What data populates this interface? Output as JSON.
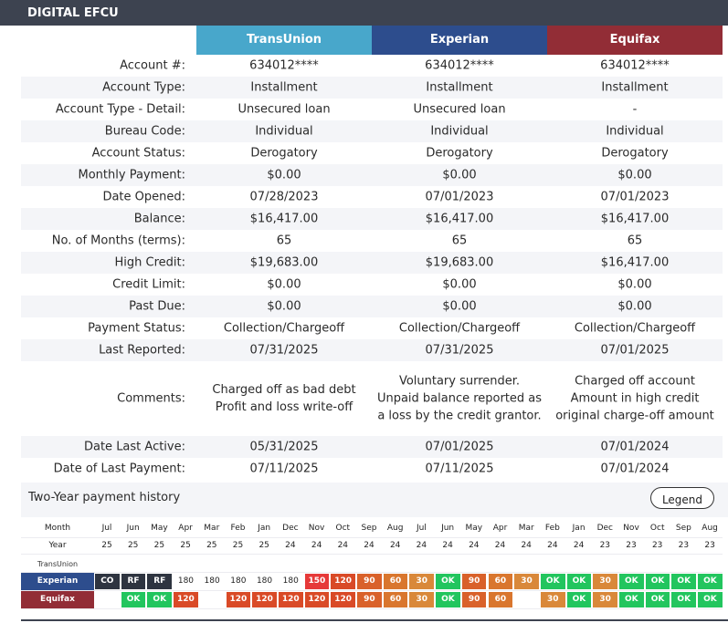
{
  "account": {
    "name": "DIGITAL EFCU",
    "bureaus": [
      "TransUnion",
      "Experian",
      "Equifax"
    ],
    "colors": {
      "transunion": "#48a7cb",
      "experian": "#2d4d8d",
      "equifax": "#922d36"
    },
    "rows": [
      {
        "label": "Account #:",
        "values": [
          "634012****",
          "634012****",
          "634012****"
        ]
      },
      {
        "label": "Account Type:",
        "values": [
          "Installment",
          "Installment",
          "Installment"
        ]
      },
      {
        "label": "Account Type - Detail:",
        "values": [
          "Unsecured loan",
          "Unsecured loan",
          "-"
        ]
      },
      {
        "label": "Bureau Code:",
        "values": [
          "Individual",
          "Individual",
          "Individual"
        ]
      },
      {
        "label": "Account Status:",
        "values": [
          "Derogatory",
          "Derogatory",
          "Derogatory"
        ]
      },
      {
        "label": "Monthly Payment:",
        "values": [
          "$0.00",
          "$0.00",
          "$0.00"
        ]
      },
      {
        "label": "Date Opened:",
        "values": [
          "07/28/2023",
          "07/01/2023",
          "07/01/2023"
        ]
      },
      {
        "label": "Balance:",
        "values": [
          "$16,417.00",
          "$16,417.00",
          "$16,417.00"
        ]
      },
      {
        "label": "No. of Months (terms):",
        "values": [
          "65",
          "65",
          "65"
        ]
      },
      {
        "label": "High Credit:",
        "values": [
          "$19,683.00",
          "$19,683.00",
          "$16,417.00"
        ]
      },
      {
        "label": "Credit Limit:",
        "values": [
          "$0.00",
          "$0.00",
          "$0.00"
        ]
      },
      {
        "label": "Past Due:",
        "values": [
          "$0.00",
          "$0.00",
          "$0.00"
        ]
      },
      {
        "label": "Payment Status:",
        "values": [
          "Collection/Chargeoff",
          "Collection/Chargeoff",
          "Collection/Chargeoff"
        ]
      },
      {
        "label": "Last Reported:",
        "values": [
          "07/31/2025",
          "07/31/2025",
          "07/01/2025"
        ]
      },
      {
        "label": "Comments:",
        "values": [
          "Charged off as bad debt\nProfit and loss write-off",
          "Voluntary surrender.\nUnpaid balance reported as\na loss by the credit grantor.",
          "Charged off account\nAmount in high credit\noriginal charge-off amount"
        ]
      },
      {
        "label": "Date Last Active:",
        "values": [
          "05/31/2025",
          "07/01/2025",
          "07/01/2024"
        ]
      },
      {
        "label": "Date of Last Payment:",
        "values": [
          "07/11/2025",
          "07/11/2025",
          "07/01/2024"
        ]
      }
    ]
  },
  "history": {
    "title": "Two-Year payment history",
    "legend_label": "Legend",
    "month_label": "Month",
    "year_label": "Year",
    "months": [
      "Jul",
      "Jun",
      "May",
      "Apr",
      "Mar",
      "Feb",
      "Jan",
      "Dec",
      "Nov",
      "Oct",
      "Sep",
      "Aug",
      "Jul",
      "Jun",
      "May",
      "Apr",
      "Mar",
      "Feb",
      "Jan",
      "Dec",
      "Nov",
      "Oct",
      "Sep",
      "Aug"
    ],
    "years": [
      "25",
      "25",
      "25",
      "25",
      "25",
      "25",
      "25",
      "24",
      "24",
      "24",
      "24",
      "24",
      "24",
      "24",
      "24",
      "24",
      "24",
      "24",
      "24",
      "23",
      "23",
      "23",
      "23",
      "23"
    ],
    "bureaus": [
      {
        "label": "TransUnion",
        "values": [
          "",
          "",
          "",
          "",
          "",
          "",
          "",
          "",
          "",
          "",
          "",
          "",
          "",
          "",
          "",
          "",
          "",
          "",
          "",
          "",
          "",
          "",
          "",
          ""
        ]
      },
      {
        "label": "Experian",
        "values": [
          "CO",
          "RF",
          "RF",
          "180",
          "180",
          "180",
          "180",
          "180",
          "150",
          "120",
          "90",
          "60",
          "30",
          "OK",
          "90",
          "60",
          "30",
          "OK",
          "OK",
          "30",
          "OK",
          "OK",
          "OK",
          "OK"
        ]
      },
      {
        "label": "Equifax",
        "values": [
          "",
          "OK",
          "OK",
          "120",
          "",
          "120",
          "120",
          "120",
          "120",
          "120",
          "90",
          "60",
          "30",
          "OK",
          "90",
          "60",
          "",
          "30",
          "OK",
          "30",
          "OK",
          "OK",
          "OK",
          "OK"
        ]
      }
    ],
    "status_colors": {
      "OK": "#22c55e",
      "30": "#d9883a",
      "60": "#d9762e",
      "90": "#d9612a",
      "120": "#d94a27",
      "150": "#e63939",
      "180": "#ffffff",
      "CO": "#2e3440",
      "RF": "#2e3440",
      "": "#ffffff"
    }
  }
}
